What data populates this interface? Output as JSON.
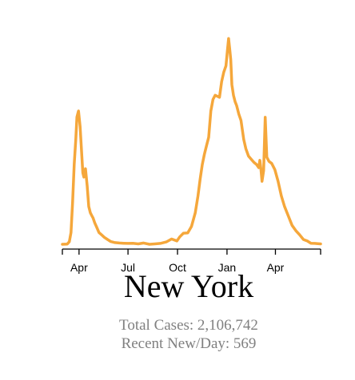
{
  "chart_data": {
    "type": "line",
    "title": "New York",
    "xlabel": "",
    "ylabel": "",
    "x_start": "2020-03-01",
    "x_end": "2021-06-24",
    "x_ticks": [
      {
        "label": "Apr",
        "date": "2020-04-01"
      },
      {
        "label": "Jul",
        "date": "2020-07-01"
      },
      {
        "label": "Oct",
        "date": "2020-10-01"
      },
      {
        "label": "Jan",
        "date": "2021-01-01"
      },
      {
        "label": "Apr",
        "date": "2021-04-01"
      }
    ],
    "ylim": [
      0,
      10000
    ],
    "grid": false,
    "line_color": "#F5A73B",
    "series": [
      {
        "x": [
          "2020-03-01",
          "2020-03-10",
          "2020-03-14",
          "2020-03-17",
          "2020-03-20",
          "2020-03-23",
          "2020-03-26",
          "2020-03-28",
          "2020-03-31",
          "2020-04-03",
          "2020-04-06",
          "2020-04-08",
          "2020-04-10",
          "2020-04-13",
          "2020-04-16",
          "2020-04-19",
          "2020-04-22",
          "2020-04-25",
          "2020-04-27",
          "2020-04-30",
          "2020-05-04",
          "2020-05-08",
          "2020-05-13",
          "2020-05-18",
          "2020-05-24",
          "2020-05-30",
          "2020-06-07",
          "2020-06-15",
          "2020-06-23",
          "2020-07-01",
          "2020-07-10",
          "2020-07-20",
          "2020-07-30",
          "2020-08-10",
          "2020-08-20",
          "2020-08-30",
          "2020-09-10",
          "2020-09-20",
          "2020-09-30",
          "2020-10-05",
          "2020-10-12",
          "2020-10-20",
          "2020-10-27",
          "2020-11-03",
          "2020-11-08",
          "2020-11-12",
          "2020-11-16",
          "2020-11-20",
          "2020-11-24",
          "2020-11-28",
          "2020-12-02",
          "2020-12-06",
          "2020-12-10",
          "2020-12-14",
          "2020-12-18",
          "2020-12-22",
          "2020-12-26",
          "2020-12-30",
          "2021-01-02",
          "2021-01-04",
          "2021-01-06",
          "2021-01-08",
          "2021-01-10",
          "2021-01-13",
          "2021-01-16",
          "2021-01-19",
          "2021-01-23",
          "2021-01-27",
          "2021-02-01",
          "2021-02-05",
          "2021-02-10",
          "2021-02-15",
          "2021-02-20",
          "2021-02-25",
          "2021-03-01",
          "2021-03-03",
          "2021-03-05",
          "2021-03-07",
          "2021-03-10",
          "2021-03-13",
          "2021-03-16",
          "2021-03-20",
          "2021-03-25",
          "2021-03-31",
          "2021-04-06",
          "2021-04-12",
          "2021-04-18",
          "2021-04-25",
          "2021-05-02",
          "2021-05-09",
          "2021-05-16",
          "2021-05-23",
          "2021-05-30",
          "2021-06-06",
          "2021-06-13",
          "2021-06-19",
          "2021-06-24"
        ],
        "values": [
          0,
          10,
          120,
          560,
          2000,
          3800,
          5000,
          6060,
          6350,
          5600,
          4300,
          3400,
          3200,
          3600,
          2800,
          1800,
          1500,
          1350,
          1250,
          1030,
          800,
          560,
          450,
          330,
          230,
          130,
          80,
          60,
          50,
          40,
          50,
          20,
          60,
          0,
          20,
          40,
          110,
          250,
          160,
          350,
          530,
          540,
          850,
          1500,
          2300,
          3100,
          3800,
          4300,
          4700,
          5100,
          6350,
          6900,
          7100,
          7050,
          7000,
          7750,
          8200,
          8500,
          9300,
          9800,
          9300,
          8800,
          7600,
          7100,
          6800,
          6600,
          6200,
          5900,
          5000,
          4550,
          4200,
          4050,
          3900,
          3800,
          3650,
          4000,
          3600,
          3000,
          3500,
          6050,
          4150,
          3950,
          3850,
          3550,
          3000,
          2300,
          1800,
          1350,
          900,
          650,
          450,
          230,
          160,
          50,
          40,
          30,
          20
        ]
      }
    ]
  },
  "title": "New York",
  "stats": {
    "total_cases": "Total Cases: 2,106,742",
    "recent_new_per_day": "Recent New/Day: 569"
  }
}
